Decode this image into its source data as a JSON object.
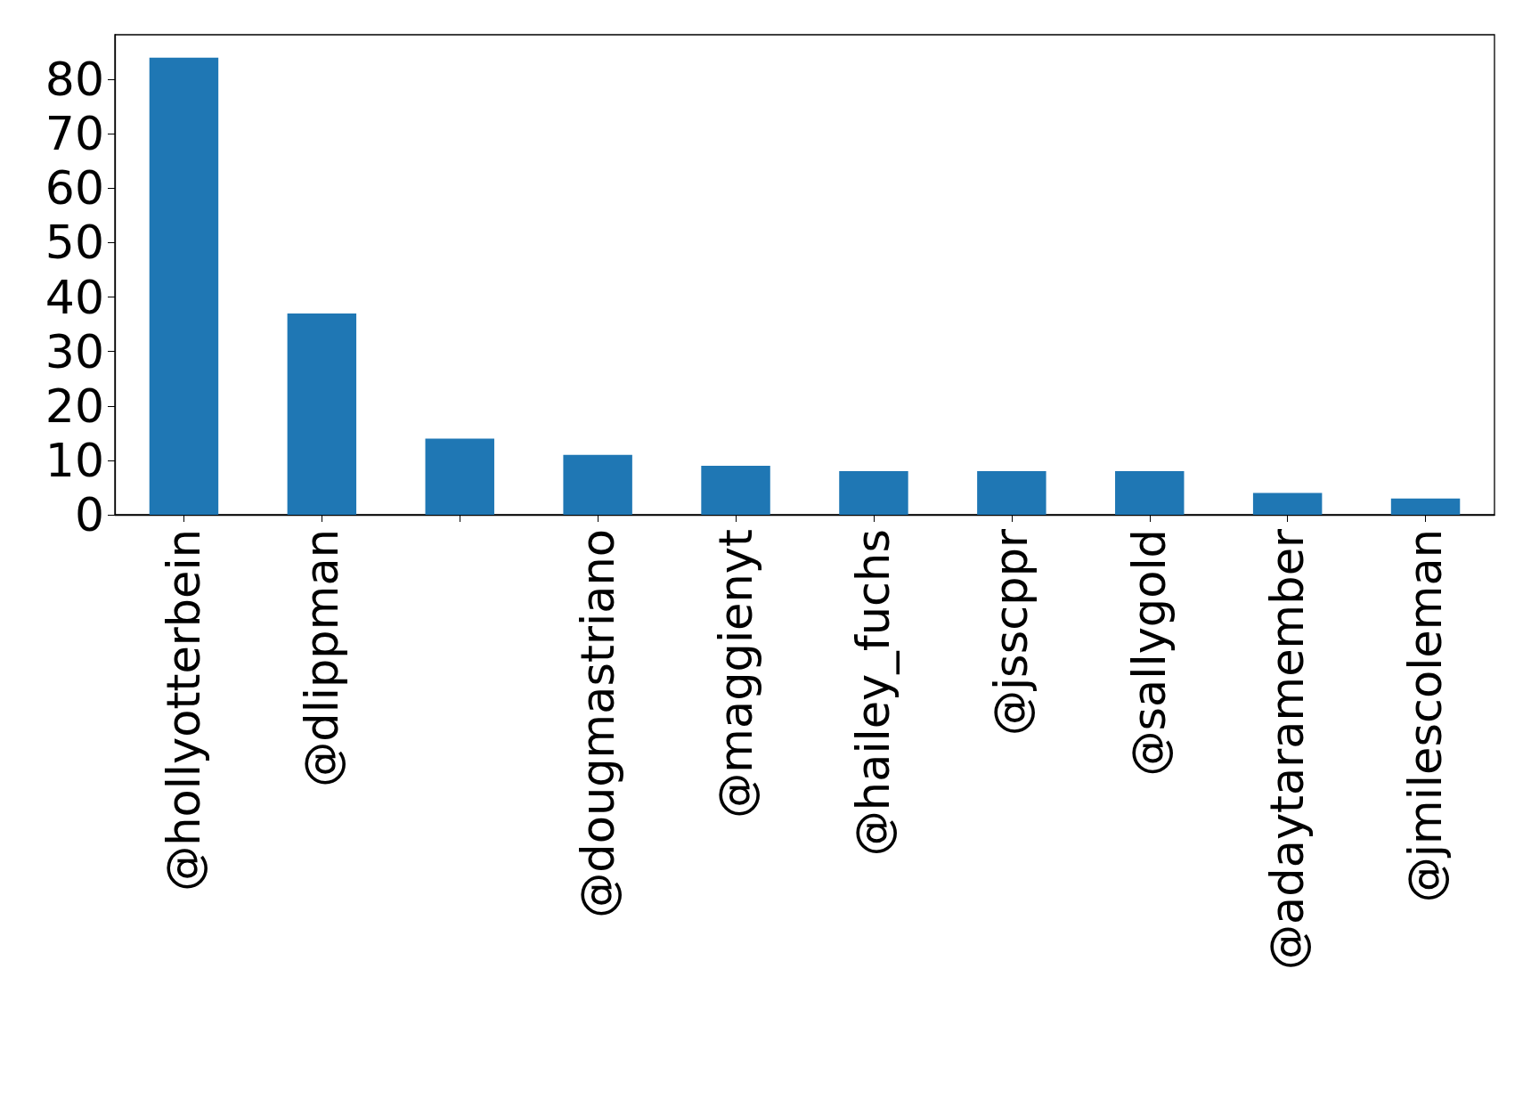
{
  "chart_data": {
    "type": "bar",
    "categories": [
      "@hollyotterbein",
      "@dlippman",
      null,
      "@dougmastriano",
      "@maggienyt",
      "@hailey_fuchs",
      "@jsscppr",
      "@sallygold",
      "@adaytaramember",
      "@jmilescoleman"
    ],
    "values": [
      84,
      37,
      14,
      11,
      9,
      8,
      8,
      8,
      4,
      3
    ],
    "color": "#1f77b4",
    "ylim": [
      0,
      88.2
    ],
    "yticks": [
      0,
      10,
      20,
      30,
      40,
      50,
      60,
      70,
      80
    ],
    "grid": false
  }
}
